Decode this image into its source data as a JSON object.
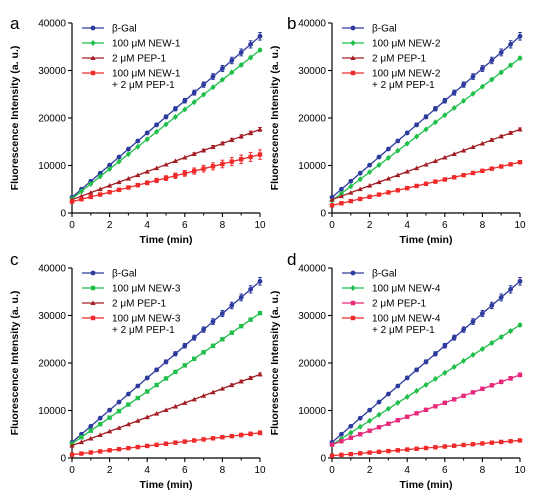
{
  "colors": {
    "beta_gal": "#2d3a9e",
    "new_green": "#1fbf4a",
    "pep1_darkred": "#a31d24",
    "combo_red": "#f02a2a",
    "pep1_pink": "#e8287a"
  },
  "chart_data": [
    {
      "id": "a",
      "type": "line",
      "panel_label": "a",
      "xlabel": "Time (min)",
      "ylabel": "Fluorescence Intensity (a. u.)",
      "xlim": [
        0,
        10
      ],
      "ylim": [
        0,
        40000
      ],
      "x_ticks": [
        "0",
        "2",
        "4",
        "6",
        "8",
        "10"
      ],
      "y_ticks": [
        "0",
        "10000",
        "20000",
        "30000",
        "40000"
      ],
      "series": [
        {
          "name": "β-Gal",
          "color": "#2d3a9e",
          "marker": "circle",
          "start": 3300,
          "end": 37200,
          "error": 800
        },
        {
          "name": "100 μM NEW-1",
          "color": "#1fbf4a",
          "marker": "diamond",
          "start": 3000,
          "end": 34300,
          "error": 300
        },
        {
          "name": "2 μM PEP-1",
          "color": "#a31d24",
          "marker": "triangle",
          "start": 2800,
          "end": 17600,
          "error": 400
        },
        {
          "name": [
            "100 μM NEW-1",
            "+ 2 μM PEP-1"
          ],
          "color": "#f02a2a",
          "marker": "square",
          "start": 2400,
          "end": 12300,
          "error": 1000
        }
      ]
    },
    {
      "id": "b",
      "type": "line",
      "panel_label": "b",
      "xlabel": "Time (min)",
      "ylabel": "Fluorescence Intensity (a. u.)",
      "xlim": [
        0,
        10
      ],
      "ylim": [
        0,
        40000
      ],
      "x_ticks": [
        "0",
        "2",
        "4",
        "6",
        "8",
        "10"
      ],
      "y_ticks": [
        "0",
        "10000",
        "20000",
        "30000",
        "40000"
      ],
      "series": [
        {
          "name": "β-Gal",
          "color": "#2d3a9e",
          "marker": "circle",
          "start": 3300,
          "end": 37200,
          "error": 800
        },
        {
          "name": "100 μM NEW-2",
          "color": "#1fbf4a",
          "marker": "diamond",
          "start": 2600,
          "end": 32600,
          "error": 300
        },
        {
          "name": "2 μM PEP-1",
          "color": "#a31d24",
          "marker": "triangle",
          "start": 2800,
          "end": 17600,
          "error": 300
        },
        {
          "name": [
            "100 μM NEW-2",
            "+ 2 μM PEP-1"
          ],
          "color": "#f02a2a",
          "marker": "square",
          "start": 1600,
          "end": 10700,
          "error": 300
        }
      ]
    },
    {
      "id": "c",
      "type": "line",
      "panel_label": "c",
      "xlabel": "Time (min)",
      "ylabel": "Fluorescence Intensity (a. u.)",
      "xlim": [
        0,
        10
      ],
      "ylim": [
        0,
        40000
      ],
      "x_ticks": [
        "0",
        "2",
        "4",
        "6",
        "8",
        "10"
      ],
      "y_ticks": [
        "0",
        "10000",
        "20000",
        "30000",
        "40000"
      ],
      "series": [
        {
          "name": "β-Gal",
          "color": "#2d3a9e",
          "marker": "circle",
          "start": 3300,
          "end": 37200,
          "error": 800
        },
        {
          "name": "100 μM NEW-3",
          "color": "#1fbf4a",
          "marker": "square",
          "start": 3000,
          "end": 30500,
          "error": 300
        },
        {
          "name": "2 μM PEP-1",
          "color": "#a31d24",
          "marker": "triangle",
          "start": 2600,
          "end": 17600,
          "error": 300
        },
        {
          "name": [
            "100 μM NEW-3",
            "+ 2 μM PEP-1"
          ],
          "color": "#f02a2a",
          "marker": "square",
          "start": 700,
          "end": 5300,
          "error": 400
        }
      ]
    },
    {
      "id": "d",
      "type": "line",
      "panel_label": "d",
      "xlabel": "Time (min)",
      "ylabel": "Fluorescence Intensity (a. u.)",
      "xlim": [
        0,
        10
      ],
      "ylim": [
        0,
        40000
      ],
      "x_ticks": [
        "0",
        "2",
        "4",
        "6",
        "8",
        "10"
      ],
      "y_ticks": [
        "0",
        "10000",
        "20000",
        "30000",
        "40000"
      ],
      "series": [
        {
          "name": "β-Gal",
          "color": "#2d3a9e",
          "marker": "circle",
          "start": 3300,
          "end": 37200,
          "error": 800
        },
        {
          "name": "100 μM NEW-4",
          "color": "#1fbf4a",
          "marker": "diamond",
          "start": 2800,
          "end": 28000,
          "error": 300
        },
        {
          "name": "2 μM PEP-1",
          "color": "#e8287a",
          "marker": "square",
          "start": 2800,
          "end": 17500,
          "error": 400
        },
        {
          "name": [
            "100 μM NEW-4",
            "+ 2 μM PEP-1"
          ],
          "color": "#f02a2a",
          "marker": "square",
          "start": 500,
          "end": 3700,
          "error": 200
        }
      ]
    }
  ]
}
